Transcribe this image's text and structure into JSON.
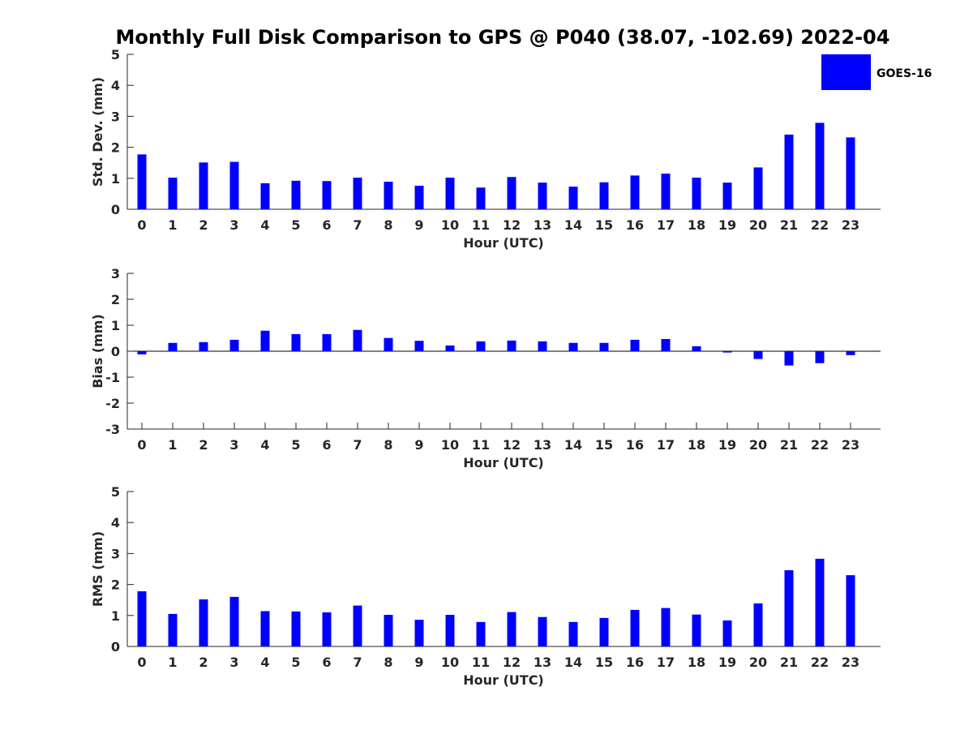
{
  "title": "Monthly Full Disk Comparison to GPS @ P040 (38.07, -102.69) 2022-04",
  "legend": {
    "label": "GOES-16",
    "color": "#0000ff",
    "placement": "top-right"
  },
  "chart_data": [
    {
      "type": "bar",
      "xlabel": "Hour (UTC)",
      "ylabel": "Std. Dev. (mm)",
      "ylim": [
        0,
        5
      ],
      "yticks": [
        "0",
        "1",
        "2",
        "3",
        "4",
        "5"
      ],
      "categories": [
        "0",
        "1",
        "2",
        "3",
        "4",
        "5",
        "6",
        "7",
        "8",
        "9",
        "10",
        "11",
        "12",
        "13",
        "14",
        "15",
        "16",
        "17",
        "18",
        "19",
        "20",
        "21",
        "22",
        "23"
      ],
      "series": [
        {
          "name": "GOES-16",
          "values": [
            1.77,
            1.02,
            1.51,
            1.53,
            0.84,
            0.92,
            0.91,
            1.02,
            0.89,
            0.76,
            1.02,
            0.7,
            1.04,
            0.86,
            0.73,
            0.87,
            1.09,
            1.15,
            1.02,
            0.86,
            1.35,
            2.41,
            2.79,
            2.32
          ]
        }
      ]
    },
    {
      "type": "bar",
      "xlabel": "Hour (UTC)",
      "ylabel": "Bias (mm)",
      "ylim": [
        -3,
        3
      ],
      "yticks": [
        "-3",
        "-2",
        "-1",
        "0",
        "1",
        "2",
        "3"
      ],
      "categories": [
        "0",
        "1",
        "2",
        "3",
        "4",
        "5",
        "6",
        "7",
        "8",
        "9",
        "10",
        "11",
        "12",
        "13",
        "14",
        "15",
        "16",
        "17",
        "18",
        "19",
        "20",
        "21",
        "22",
        "23"
      ],
      "series": [
        {
          "name": "GOES-16",
          "values": [
            -0.12,
            0.32,
            0.35,
            0.44,
            0.79,
            0.66,
            0.66,
            0.82,
            0.51,
            0.4,
            0.22,
            0.38,
            0.41,
            0.38,
            0.32,
            0.32,
            0.44,
            0.47,
            0.19,
            -0.05,
            -0.3,
            -0.55,
            -0.46,
            -0.15
          ]
        }
      ]
    },
    {
      "type": "bar",
      "xlabel": "Hour (UTC)",
      "ylabel": "RMS (mm)",
      "ylim": [
        0,
        5
      ],
      "yticks": [
        "0",
        "1",
        "2",
        "3",
        "4",
        "5"
      ],
      "categories": [
        "0",
        "1",
        "2",
        "3",
        "4",
        "5",
        "6",
        "7",
        "8",
        "9",
        "10",
        "11",
        "12",
        "13",
        "14",
        "15",
        "16",
        "17",
        "18",
        "19",
        "20",
        "21",
        "22",
        "23"
      ],
      "series": [
        {
          "name": "GOES-16",
          "values": [
            1.78,
            1.05,
            1.52,
            1.6,
            1.14,
            1.13,
            1.1,
            1.32,
            1.02,
            0.86,
            1.02,
            0.79,
            1.11,
            0.95,
            0.79,
            0.92,
            1.18,
            1.24,
            1.03,
            0.84,
            1.39,
            2.46,
            2.83,
            2.3
          ]
        }
      ]
    }
  ]
}
